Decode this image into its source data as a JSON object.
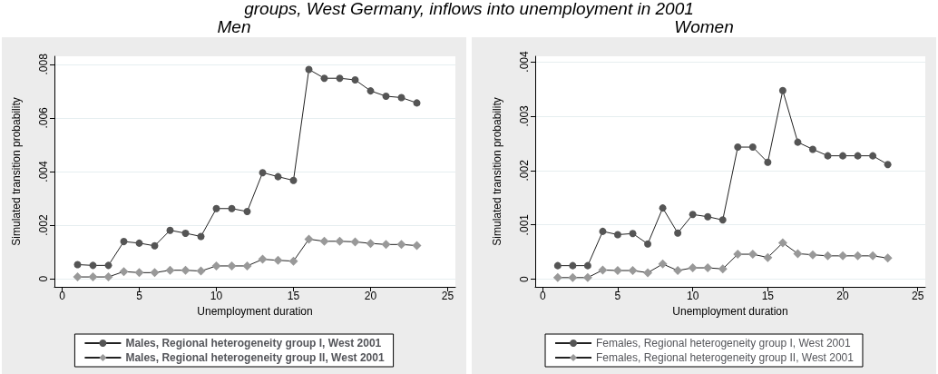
{
  "chart_data": [
    {
      "type": "line",
      "title": "Men",
      "annotations": [
        "groups, West Germany, inflows into unemployment in 2001"
      ],
      "xlabel": "Unemployment duration",
      "ylabel": "Simulated transition probability",
      "x": [
        1,
        2,
        3,
        4,
        5,
        6,
        7,
        8,
        9,
        10,
        11,
        12,
        13,
        14,
        15,
        16,
        17,
        18,
        19,
        20,
        21,
        22,
        23
      ],
      "series": [
        {
          "name": "Males, Regional heterogeneity group I, West 2001",
          "color": "#555555",
          "marker": "circle",
          "values": [
            0.00053,
            0.0005,
            0.0005,
            0.00139,
            0.00133,
            0.00123,
            0.00181,
            0.0017,
            0.00158,
            0.00262,
            0.00262,
            0.00251,
            0.00396,
            0.00381,
            0.00367,
            0.00781,
            0.00748,
            0.00748,
            0.00742,
            0.00701,
            0.00681,
            0.00676,
            0.00656
          ]
        },
        {
          "name": "Males, Regional heterogeneity group II, West 2001",
          "color": "#999999",
          "marker": "diamond",
          "values": [
            7e-05,
            7e-05,
            7e-05,
            0.00027,
            0.00023,
            0.00023,
            0.00032,
            0.00032,
            0.00029,
            0.00048,
            0.00048,
            0.00048,
            0.00073,
            0.00069,
            0.00066,
            0.00148,
            0.0014,
            0.0014,
            0.00138,
            0.00132,
            0.00128,
            0.00128,
            0.00124
          ]
        }
      ],
      "xlim": [
        -0.5,
        25.5
      ],
      "xticks": [
        0,
        5,
        10,
        15,
        20,
        25
      ],
      "ylim": [
        -0.0003,
        0.0083
      ],
      "yticks": [
        {
          "value": 0,
          "label": "0"
        },
        {
          "value": 0.002,
          "label": ".002"
        },
        {
          "value": 0.004,
          "label": ".004"
        },
        {
          "value": 0.006,
          "label": ".006"
        },
        {
          "value": 0.008,
          "label": ".008"
        }
      ],
      "grid": "y",
      "legend": "bottom",
      "line_style": "solid"
    },
    {
      "type": "line",
      "title": "Women",
      "xlabel": "Unemployment duration",
      "ylabel": "Simulated transition probability",
      "x": [
        1,
        2,
        3,
        4,
        5,
        6,
        7,
        8,
        9,
        10,
        11,
        12,
        13,
        14,
        15,
        16,
        17,
        18,
        19,
        20,
        21,
        22,
        23
      ],
      "series": [
        {
          "name": "Females, Regional heterogeneity group I, West 2001",
          "color": "#555555",
          "marker": "circle",
          "values": [
            0.00025,
            0.00025,
            0.00025,
            0.00088,
            0.00082,
            0.00084,
            0.00065,
            0.00131,
            0.00085,
            0.00119,
            0.00115,
            0.00109,
            0.00243,
            0.00243,
            0.00215,
            0.00347,
            0.00252,
            0.00239,
            0.00227,
            0.00227,
            0.00227,
            0.00227,
            0.00211
          ]
        },
        {
          "name": "Females, Regional heterogeneity group II, West 2001",
          "color": "#999999",
          "marker": "diamond",
          "values": [
            3e-05,
            3e-05,
            3e-05,
            0.00017,
            0.00016,
            0.00016,
            0.00012,
            0.00028,
            0.00016,
            0.00021,
            0.00021,
            0.00019,
            0.00046,
            0.00046,
            0.0004,
            0.00067,
            0.00047,
            0.00045,
            0.00043,
            0.00043,
            0.00043,
            0.00043,
            0.00039
          ]
        }
      ],
      "xlim": [
        -0.5,
        25.5
      ],
      "xticks": [
        0,
        5,
        10,
        15,
        20,
        25
      ],
      "ylim": [
        -0.00014,
        0.0041
      ],
      "yticks": [
        {
          "value": 0,
          "label": "0"
        },
        {
          "value": 0.001,
          "label": ".001"
        },
        {
          "value": 0.002,
          "label": ".002"
        },
        {
          "value": 0.003,
          "label": ".003"
        },
        {
          "value": 0.004,
          "label": ".004"
        }
      ],
      "grid": "y",
      "legend": "bottom",
      "line_style": "solid"
    }
  ]
}
